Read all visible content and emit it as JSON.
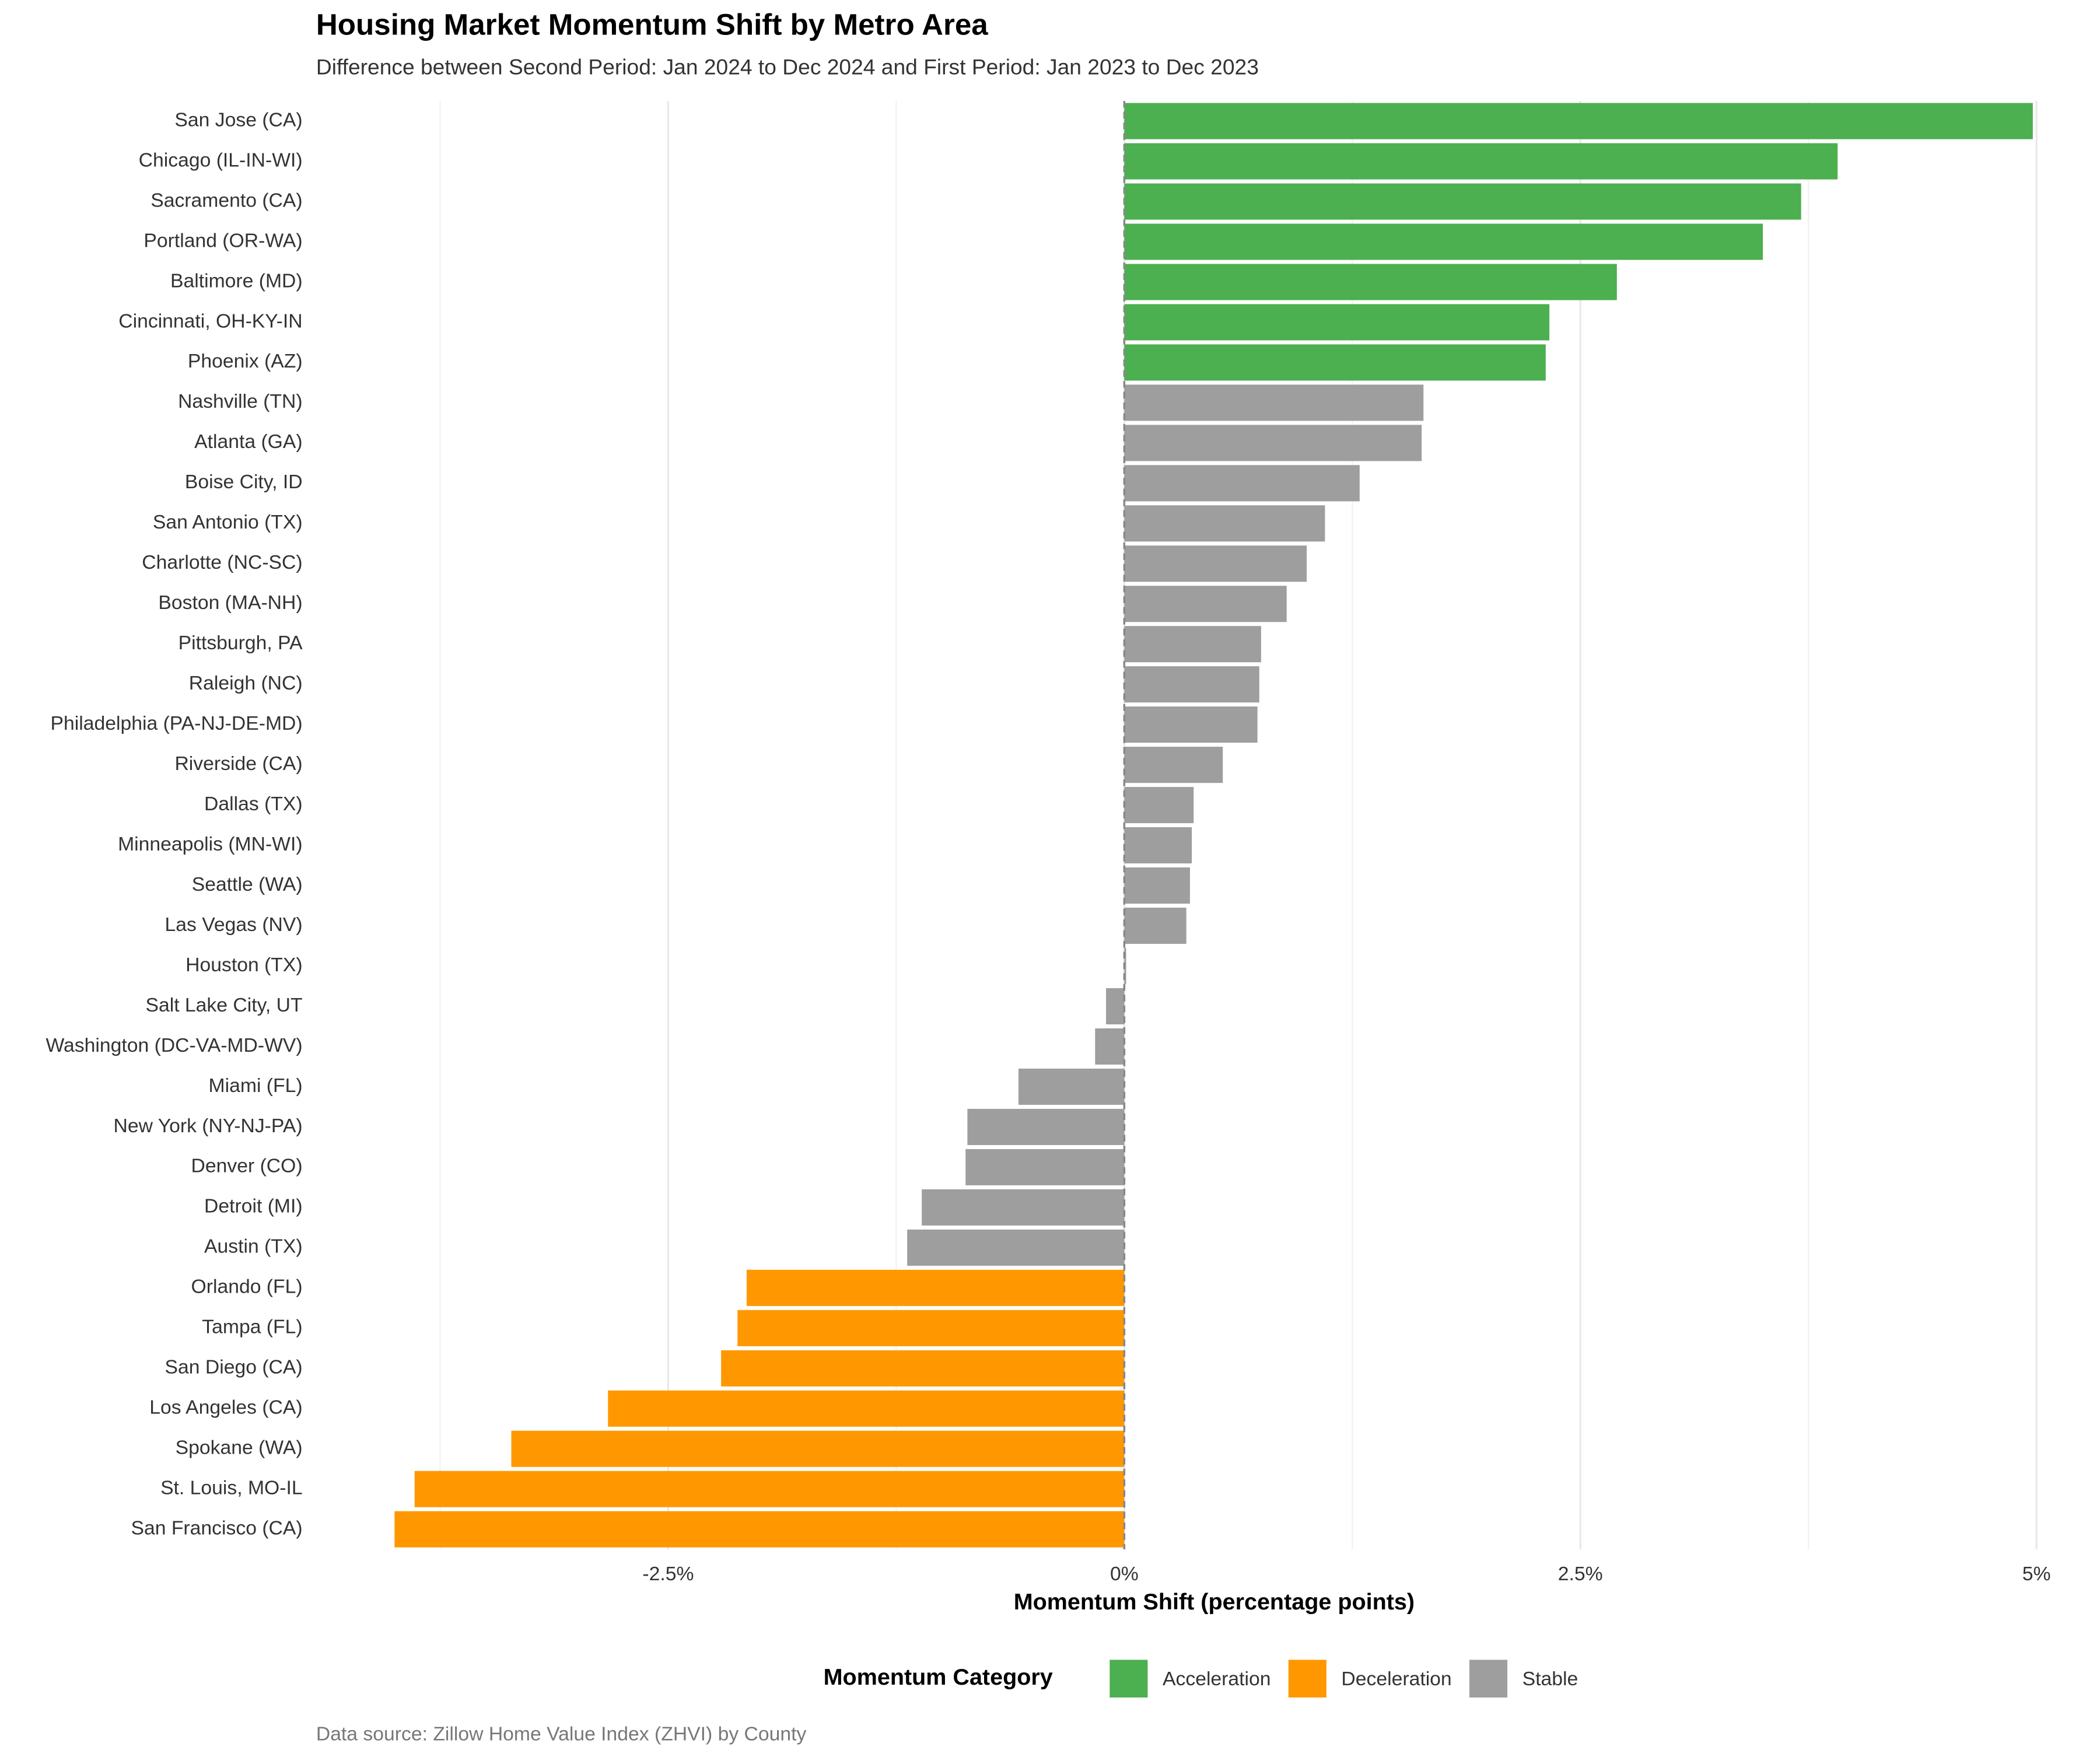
{
  "chart_data": {
    "type": "hbar",
    "title": "Housing Market Momentum Shift by Metro Area",
    "subtitle": "Difference between Second Period: Jan 2024 to Dec 2024 and First Period: Jan 2023 to Dec 2023",
    "x_label": "Momentum Shift (percentage points)",
    "caption": "Data source: Zillow Home Value Index (ZHVI) by County",
    "legend_title": "Momentum Category",
    "categories": [
      "San Jose (CA)",
      "Chicago (IL-IN-WI)",
      "Sacramento (CA)",
      "Portland (OR-WA)",
      "Baltimore (MD)",
      "Cincinnati, OH-KY-IN",
      "Phoenix (AZ)",
      "Nashville (TN)",
      "Atlanta (GA)",
      "Boise City, ID",
      "San Antonio (TX)",
      "Charlotte (NC-SC)",
      "Boston (MA-NH)",
      "Pittsburgh, PA",
      "Raleigh (NC)",
      "Philadelphia (PA-NJ-DE-MD)",
      "Riverside (CA)",
      "Dallas (TX)",
      "Minneapolis (MN-WI)",
      "Seattle (WA)",
      "Las Vegas (NV)",
      "Houston (TX)",
      "Salt Lake City, UT",
      "Washington (DC-VA-MD-WV)",
      "Miami (FL)",
      "New York (NY-NJ-PA)",
      "Denver (CO)",
      "Detroit (MI)",
      "Austin (TX)",
      "Orlando (FL)",
      "Tampa (FL)",
      "San Diego (CA)",
      "Los Angeles (CA)",
      "Spokane (WA)",
      "St. Louis, MO-IL",
      "San Francisco (CA)"
    ],
    "series": [
      {
        "name": "Acceleration",
        "color": "#4caf50",
        "values": [
          4.98,
          3.91,
          3.71,
          3.5,
          2.7,
          2.33,
          2.31,
          null,
          null,
          null,
          null,
          null,
          null,
          null,
          null,
          null,
          null,
          null,
          null,
          null,
          null,
          null,
          null,
          null,
          null,
          null,
          null,
          null,
          null,
          null,
          null,
          null,
          null,
          null,
          null,
          null
        ]
      },
      {
        "name": "Deceleration",
        "color": "#ff9800",
        "values": [
          null,
          null,
          null,
          null,
          null,
          null,
          null,
          null,
          null,
          null,
          null,
          null,
          null,
          null,
          null,
          null,
          null,
          null,
          null,
          null,
          null,
          null,
          null,
          null,
          null,
          null,
          null,
          null,
          null,
          -2.07,
          -2.12,
          -2.21,
          -2.83,
          -3.36,
          -3.89,
          -4.0
        ]
      },
      {
        "name": "Stable",
        "color": "#9e9e9e",
        "values": [
          null,
          null,
          null,
          null,
          null,
          null,
          null,
          1.64,
          1.63,
          1.29,
          1.1,
          1.0,
          0.89,
          0.75,
          0.74,
          0.73,
          0.54,
          0.38,
          0.37,
          0.36,
          0.34,
          0.01,
          -0.1,
          -0.16,
          -0.58,
          -0.86,
          -0.87,
          -1.11,
          -1.19,
          null,
          null,
          null,
          null,
          null,
          null,
          null
        ]
      }
    ],
    "xlim": [
      -4.43,
      5.14
    ],
    "xticks": [
      {
        "value": -2.5,
        "label": "-2.5%"
      },
      {
        "value": 0,
        "label": "0%"
      },
      {
        "value": 2.5,
        "label": "2.5%"
      },
      {
        "value": 5,
        "label": "5%"
      }
    ],
    "minor_xticks": [
      -3.75,
      -1.25,
      1.25,
      3.75
    ],
    "grid": true
  }
}
